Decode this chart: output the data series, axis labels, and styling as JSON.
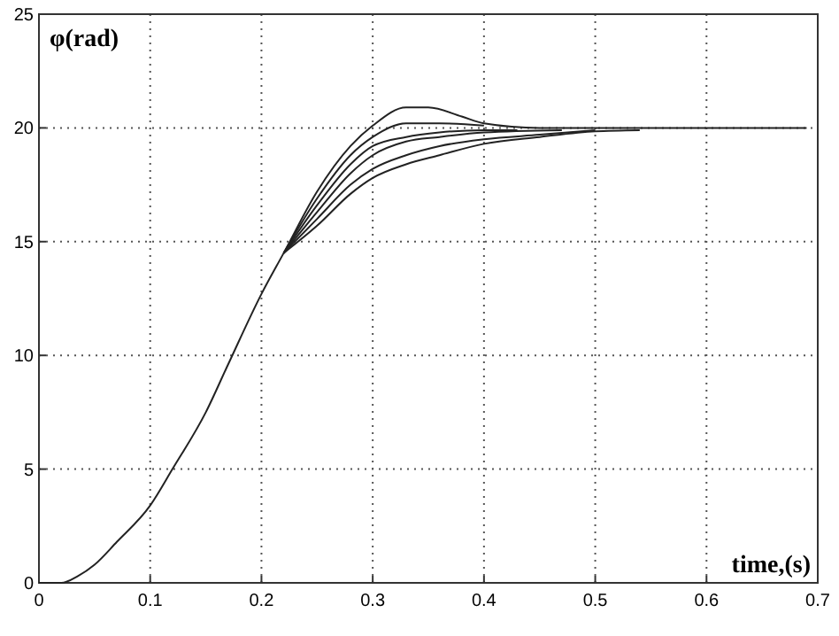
{
  "chart_data": {
    "type": "line",
    "xlabel": "time,(s)",
    "ylabel": "φ(rad)",
    "xlim": [
      0,
      0.7
    ],
    "ylim": [
      0,
      25
    ],
    "xticks": [
      0,
      0.1,
      0.2,
      0.3,
      0.4,
      0.5,
      0.6,
      0.7
    ],
    "yticks": [
      0,
      5,
      10,
      15,
      20,
      25
    ],
    "grid": true,
    "line_style": "solid",
    "series": [
      {
        "color": "#222222",
        "x": [
          0,
          0.02,
          0.035,
          0.05,
          0.07,
          0.1,
          0.12,
          0.15,
          0.17,
          0.2,
          0.22,
          0.25,
          0.28,
          0.3,
          0.33,
          0.35,
          0.38,
          0.4,
          0.45,
          0.5,
          0.6,
          0.69
        ],
        "values": [
          0,
          0,
          0.3,
          0.8,
          1.8,
          3.4,
          5.0,
          7.5,
          9.6,
          12.7,
          14.5,
          17.2,
          19.2,
          20.1,
          20.9,
          20.9,
          20.5,
          20.2,
          20.0,
          20.0,
          20.0,
          20.0
        ]
      },
      {
        "color": "#222222",
        "x": [
          0.22,
          0.25,
          0.28,
          0.3,
          0.33,
          0.36,
          0.4
        ],
        "values": [
          14.5,
          16.9,
          18.8,
          19.6,
          20.2,
          20.2,
          20.1
        ]
      },
      {
        "color": "#222222",
        "x": [
          0.22,
          0.25,
          0.28,
          0.3,
          0.33,
          0.36,
          0.4,
          0.43
        ],
        "values": [
          14.5,
          16.6,
          18.4,
          19.2,
          19.6,
          19.8,
          19.9,
          19.9
        ]
      },
      {
        "color": "#222222",
        "x": [
          0.22,
          0.25,
          0.28,
          0.3,
          0.33,
          0.36,
          0.4,
          0.47
        ],
        "values": [
          14.5,
          16.3,
          18.0,
          18.8,
          19.4,
          19.6,
          19.8,
          19.9
        ]
      },
      {
        "color": "#222222",
        "x": [
          0.22,
          0.25,
          0.28,
          0.3,
          0.33,
          0.36,
          0.4,
          0.45,
          0.5
        ],
        "values": [
          14.5,
          16.0,
          17.5,
          18.2,
          18.8,
          19.2,
          19.5,
          19.7,
          19.9
        ]
      },
      {
        "color": "#222222",
        "x": [
          0.22,
          0.25,
          0.28,
          0.3,
          0.33,
          0.36,
          0.4,
          0.45,
          0.5,
          0.54
        ],
        "values": [
          14.5,
          15.7,
          17.1,
          17.8,
          18.4,
          18.8,
          19.3,
          19.6,
          19.85,
          19.9
        ]
      }
    ]
  }
}
